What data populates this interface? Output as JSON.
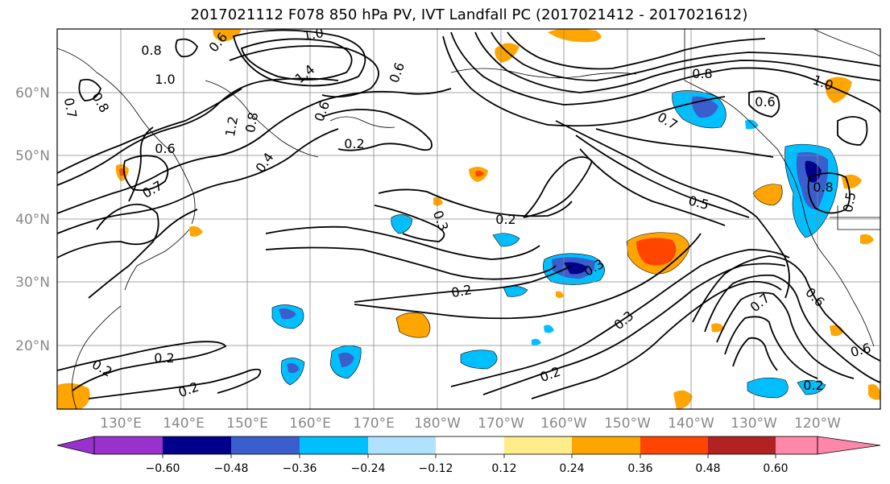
{
  "title": "2017021112 F078 850 hPa PV, IVT Landfall PC (2017021412 - 2017021612)",
  "lat_labels": [
    "60°N",
    "50°N",
    "40°N",
    "30°N",
    "20°N"
  ],
  "lon_labels": [
    "130°E",
    "140°E",
    "150°E",
    "160°E",
    "170°E",
    "180°W",
    "170°W",
    "160°W",
    "150°W",
    "140°W",
    "130°W",
    "120°W"
  ],
  "colorbar": {
    "ticks": [
      "−0.60",
      "−0.48",
      "−0.36",
      "−0.24",
      "−0.12",
      "0.12",
      "0.24",
      "0.36",
      "0.48",
      "0.60"
    ],
    "colors": [
      "#9932cc",
      "#00008b",
      "#3a5fcd",
      "#00bfff",
      "#b0e2ff",
      "#ffffff",
      "#ffec8b",
      "#ffa500",
      "#ff4500",
      "#b22222",
      "#ff88aa"
    ]
  },
  "contour_labels": [
    "0.8",
    "1.0",
    "0.6",
    "1.4",
    "0.8",
    "0.6",
    "1.0",
    "1.2",
    "0.8",
    "0.6",
    "0.4",
    "0.2",
    "0.7",
    "0.6",
    "0.8",
    "0.6",
    "1.0",
    "0.7",
    "0.5",
    "0.2",
    "0.3",
    "0.3",
    "0.2",
    "0.3",
    "0.2",
    "0.7",
    "0.6",
    "0.6",
    "0.2",
    "0.2",
    "0.2",
    "0.2",
    "0.8",
    "0.5",
    "0.7"
  ]
}
